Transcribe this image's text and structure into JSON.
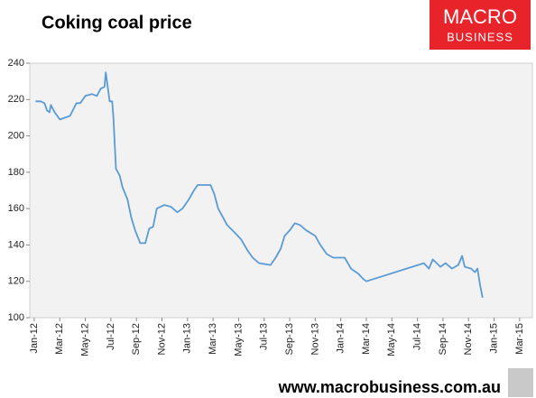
{
  "chart_data": {
    "type": "line",
    "title": "Coking coal price",
    "x": [
      0.1,
      0.5,
      0.8,
      1.0,
      1.2,
      1.3,
      1.6,
      2.0,
      2.4,
      2.8,
      3.3,
      3.6,
      4.0,
      4.5,
      4.9,
      5.2,
      5.5,
      5.6,
      5.9,
      6.1,
      6.2,
      6.4,
      6.7,
      6.9,
      7.3,
      7.6,
      7.9,
      8.3,
      8.7,
      9.0,
      9.3,
      9.6,
      10.2,
      10.7,
      11.2,
      11.6,
      12.1,
      12.5,
      12.8,
      13.8,
      14.1,
      14.4,
      15.1,
      15.8,
      16.2,
      16.7,
      17.1,
      17.6,
      18.5,
      18.9,
      19.3,
      19.6,
      20.0,
      20.4,
      20.8,
      21.3,
      22.0,
      22.4,
      22.9,
      23.4,
      24.3,
      24.8,
      25.4,
      25.8,
      26.0,
      30.5,
      30.9,
      31.2,
      31.8,
      32.2,
      32.7,
      33.2,
      33.5,
      33.7,
      34.2,
      34.5,
      34.7,
      34.9,
      35.1
    ],
    "series": [
      {
        "name": "Coking coal price",
        "color": "#5b9bd5",
        "values": [
          219,
          219,
          218,
          214,
          213,
          217,
          213,
          209,
          210,
          211,
          218,
          218,
          222,
          223,
          222,
          226,
          227,
          235,
          219,
          219,
          210,
          182,
          178,
          172,
          165,
          155,
          148,
          141,
          141,
          149,
          150,
          160,
          162,
          161,
          158,
          160,
          165,
          170,
          173,
          173,
          168,
          160,
          151,
          146,
          143,
          137,
          133,
          130,
          129,
          133,
          138,
          145,
          148,
          152,
          151,
          148,
          145,
          140,
          135,
          133,
          133,
          127,
          124,
          121,
          120,
          130,
          127,
          132,
          128,
          130,
          127,
          129,
          134,
          128,
          127,
          125,
          127,
          118,
          111
        ]
      }
    ],
    "xlim": [
      -0.35,
      39
    ],
    "xticks": [
      {
        "value": 0,
        "label": "Jan-12"
      },
      {
        "value": 2,
        "label": "Mar-12"
      },
      {
        "value": 4,
        "label": "May-12"
      },
      {
        "value": 6,
        "label": "Jul-12"
      },
      {
        "value": 8,
        "label": "Sep-12"
      },
      {
        "value": 10,
        "label": "Nov-12"
      },
      {
        "value": 12,
        "label": "Jan-13"
      },
      {
        "value": 14,
        "label": "Mar-13"
      },
      {
        "value": 16,
        "label": "May-13"
      },
      {
        "value": 18,
        "label": "Jul-13"
      },
      {
        "value": 20,
        "label": "Sep-13"
      },
      {
        "value": 22,
        "label": "Nov-13"
      },
      {
        "value": 24,
        "label": "Jan-14"
      },
      {
        "value": 26,
        "label": "Mar-14"
      },
      {
        "value": 28,
        "label": "May-14"
      },
      {
        "value": 30,
        "label": "Jul-14"
      },
      {
        "value": 32,
        "label": "Sep-14"
      },
      {
        "value": 34,
        "label": "Nov-14"
      },
      {
        "value": 36,
        "label": "Jan-15"
      },
      {
        "value": 38,
        "label": "Mar-15"
      }
    ],
    "ylim": [
      100,
      240
    ],
    "yticks": [
      100,
      120,
      140,
      160,
      180,
      200,
      220,
      240
    ],
    "grid": false
  },
  "logo": [
    "MACRO",
    "BUSINESS"
  ],
  "footer": "www.macrobusiness.com.au"
}
